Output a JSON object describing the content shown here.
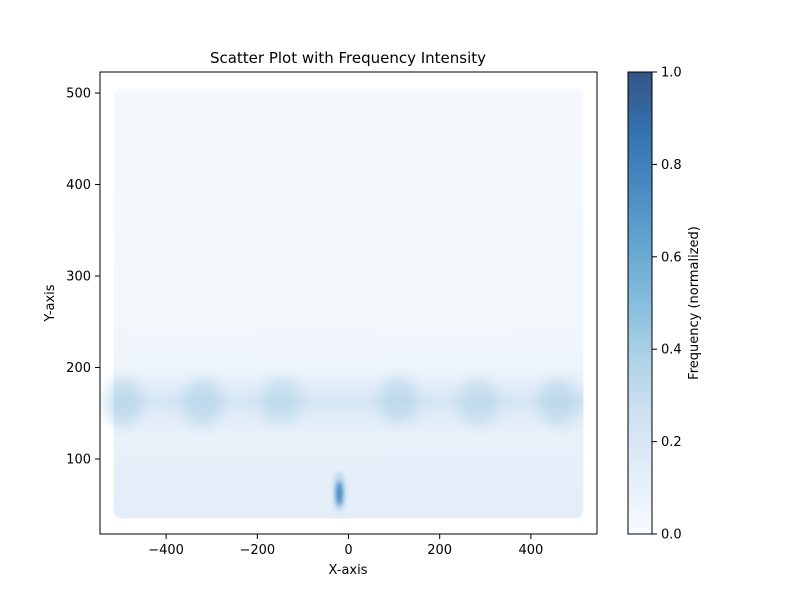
{
  "chart_data": {
    "type": "scatter",
    "title": "Scatter Plot with Frequency Intensity",
    "xlabel": "X-axis",
    "ylabel": "Y-axis",
    "xlim": [
      -545,
      545
    ],
    "ylim": [
      18,
      523
    ],
    "xticks": [
      -400,
      -200,
      0,
      200,
      400
    ],
    "xtick_labels": [
      "−400",
      "−200",
      "0",
      "200",
      "400"
    ],
    "yticks": [
      100,
      200,
      300,
      400,
      500
    ],
    "ytick_labels": [
      "100",
      "200",
      "300",
      "400",
      "500"
    ],
    "grid": false,
    "point_extent": {
      "x": [
        -515,
        515
      ],
      "y": [
        35,
        505
      ]
    },
    "frequency_clusters": [
      {
        "x": -495,
        "y": 162,
        "intensity": 0.3
      },
      {
        "x": -320,
        "y": 162,
        "intensity": 0.3
      },
      {
        "x": -148,
        "y": 164,
        "intensity": 0.26
      },
      {
        "x": 110,
        "y": 164,
        "intensity": 0.28
      },
      {
        "x": 285,
        "y": 162,
        "intensity": 0.26
      },
      {
        "x": 460,
        "y": 162,
        "intensity": 0.3
      },
      {
        "x": -20,
        "y": 60,
        "intensity": 0.85
      }
    ],
    "colorbar": {
      "label": "Frequency (normalized)",
      "range": [
        0,
        1
      ],
      "ticks": [
        0.0,
        0.2,
        0.4,
        0.6,
        0.8,
        1.0
      ],
      "tick_labels": [
        "0.0",
        "0.2",
        "0.4",
        "0.6",
        "0.8",
        "1.0"
      ],
      "colormap": [
        "#f7fbff",
        "#deebf7",
        "#c6dbef",
        "#9ecae1",
        "#6baed6",
        "#4292c6",
        "#2171b5",
        "#08519c",
        "#08306b"
      ],
      "alpha": 0.8
    }
  }
}
